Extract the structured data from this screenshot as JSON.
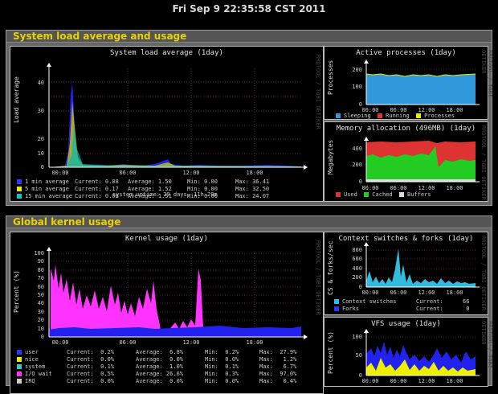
{
  "page_title": "Fri Sep 9 22:35:58 CST 2011",
  "section1_title": "System load average and usage",
  "section2_title": "Global kernel usage",
  "watermark": "RRDTOOL / TOBI OETIKER",
  "colors": {
    "load1": "#3333ff",
    "load5": "#ffff00",
    "load15": "#00cccc",
    "sleep": "#3399dd",
    "running": "#dd3333",
    "processes": "#eeee00",
    "used": "#dd3333",
    "cached": "#22dd22",
    "buffers": "#dddddd",
    "user": "#3333ff",
    "nice": "#eeee00",
    "system": "#33cccc",
    "iowait": "#ff33ff",
    "irq": "#cccccc"
  },
  "load": {
    "title": "System load average  (1day)",
    "ylabel": "Load average",
    "yticks": [
      "40",
      "30",
      "20",
      "10",
      "0"
    ],
    "xticks": [
      "00:00",
      "06:00",
      "12:00",
      "18:00"
    ],
    "rows": [
      {
        "name": "1 min average",
        "current": "Current: 0.08",
        "average": "Average: 1.50",
        "min": "Min: 0.00",
        "max": "Max: 36.41"
      },
      {
        "name": "5 min average",
        "current": "Current: 0.17",
        "average": "Average: 1.52",
        "min": "Min: 0.00",
        "max": "Max: 32.50"
      },
      {
        "name": "15 min average",
        "current": "Current: 0.08",
        "average": "Average: 1.51",
        "min": "Min: 0.00",
        "max": "Max: 24.07"
      }
    ],
    "uptime": "system uptime: 29 days, 11h 29m"
  },
  "procs": {
    "title": "Active processes  (1day)",
    "ylabel": "Processes",
    "yticks": [
      "200",
      "100",
      "0"
    ],
    "xticks": [
      "00:00",
      "06:00",
      "12:00",
      "18:00"
    ],
    "legend": [
      "Sleeping",
      "Running",
      "Processes"
    ]
  },
  "mem": {
    "title": "Memory allocation (496MB)  (1day)",
    "ylabel": "Megabytes",
    "yticks": [
      "400",
      "200",
      "0"
    ],
    "xticks": [
      "00:00",
      "06:00",
      "12:00",
      "18:00"
    ],
    "legend": [
      "Used",
      "Cached",
      "Buffers"
    ]
  },
  "kernel": {
    "title": "Kernel usage  (1day)",
    "ylabel": "Percent (%)",
    "yticks": [
      "100",
      "90",
      "80",
      "70",
      "60",
      "50",
      "40",
      "30",
      "20",
      "10",
      "0"
    ],
    "xticks": [
      "00:00",
      "06:00",
      "12:00",
      "18:00"
    ],
    "rows": [
      {
        "name": "user",
        "current": "Current:  0.2%",
        "average": "Average:  6.8%",
        "min": "Min:  0.2%",
        "max": "Max:  27.9%"
      },
      {
        "name": "nice",
        "current": "Current:  0.0%",
        "average": "Average:  0.0%",
        "min": "Min:  0.0%",
        "max": "Max:   1.2%"
      },
      {
        "name": "system",
        "current": "Current:  0.1%",
        "average": "Average:  1.0%",
        "min": "Min:  0.1%",
        "max": "Max:   6.7%"
      },
      {
        "name": "I/O wait",
        "current": "Current:  0.5%",
        "average": "Average: 26.6%",
        "min": "Min:  0.3%",
        "max": "Max:  97.0%"
      },
      {
        "name": "IRQ",
        "current": "Current:  0.0%",
        "average": "Average:  0.0%",
        "min": "Min:  0.0%",
        "max": "Max:   0.4%"
      }
    ]
  },
  "ctx": {
    "title": "Context switches & forks  (1day)",
    "ylabel": "CS & forks/sec",
    "yticks": [
      "800",
      "600",
      "400",
      "200",
      "0"
    ],
    "xticks": [
      "00:00",
      "06:00",
      "12:00",
      "18:00"
    ],
    "rows": [
      {
        "name": "Context switches",
        "current": "Current:",
        "value": "66"
      },
      {
        "name": "Forks",
        "current": "Current:",
        "value": "0"
      }
    ]
  },
  "vfs": {
    "title": "VFS usage  (1day)",
    "ylabel": "Percent (%)",
    "yticks": [
      "100",
      "50",
      "0"
    ],
    "xticks": [
      "00:00",
      "06:00",
      "12:00",
      "18:00"
    ]
  }
}
